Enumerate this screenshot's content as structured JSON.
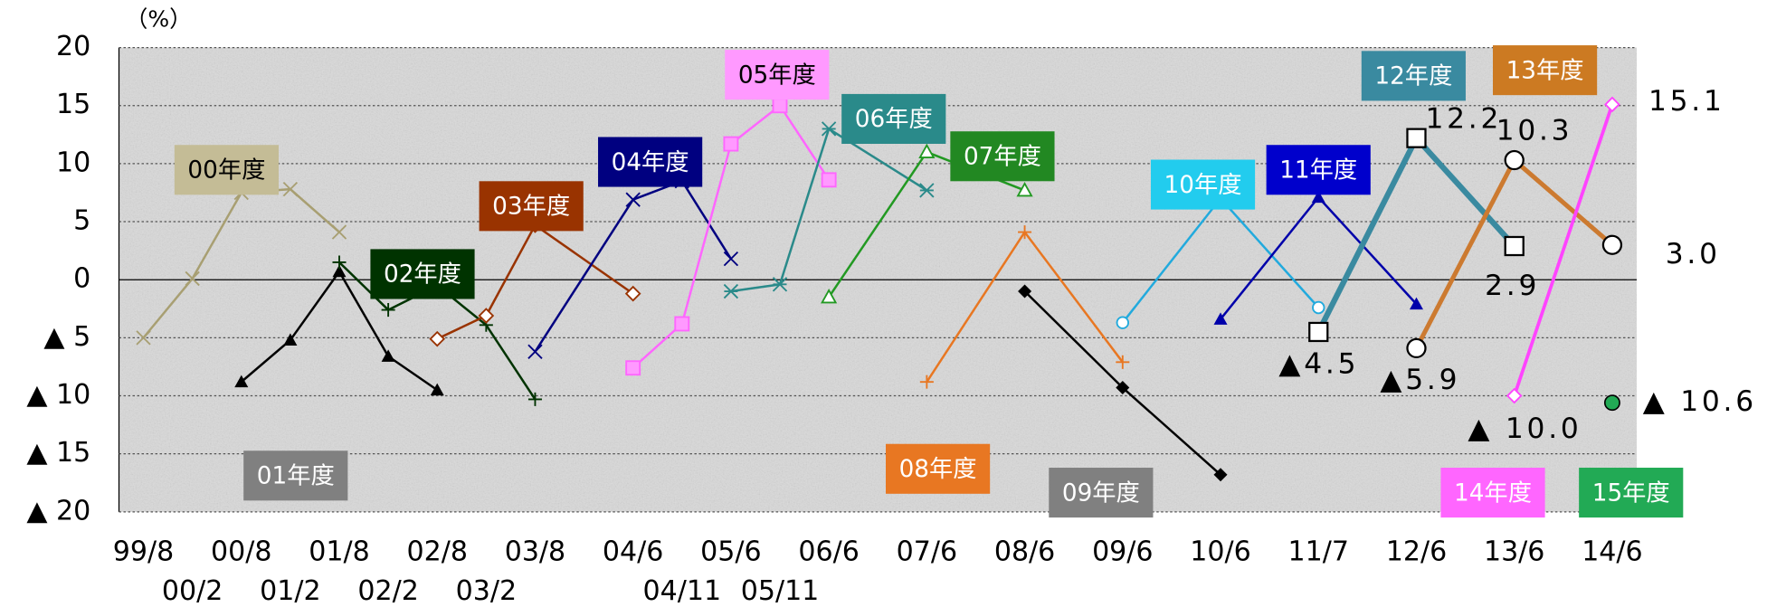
{
  "chart_data": {
    "type": "line",
    "y_label": "（%）",
    "categories": [
      "99/8",
      "00/2",
      "00/8",
      "01/2",
      "01/8",
      "02/2",
      "02/8",
      "03/2",
      "03/8",
      null,
      "04/6",
      "04/11",
      "05/6",
      "05/11",
      "06/6",
      null,
      "07/6",
      null,
      "08/6",
      null,
      "09/6",
      null,
      "10/6",
      null,
      "11/7",
      null,
      "12/6",
      null,
      "13/6",
      null,
      "14/6"
    ],
    "ylim": [
      -20,
      20
    ],
    "yticks": [
      20,
      15,
      10,
      5,
      0,
      {
        "value": -5,
        "label": "▲ 5"
      },
      {
        "value": -10,
        "label": "▲ 10"
      },
      {
        "value": -15,
        "label": "▲ 15"
      },
      {
        "value": -20,
        "label": "▲ 20"
      }
    ],
    "grid": true,
    "series": [
      {
        "name": "00年度",
        "color": "#a89f72",
        "label_color": "#c4bc96",
        "marker": "x",
        "values": [
          -5.0,
          0.1,
          7.5,
          7.8,
          4.1,
          null,
          null,
          null,
          null,
          null,
          null,
          null,
          null,
          null,
          null,
          null,
          null,
          null,
          null,
          null,
          null,
          null,
          null,
          null,
          null,
          null,
          null,
          null,
          null,
          null,
          null
        ]
      },
      {
        "name": "01年度",
        "color": "#000000",
        "label_color": "#808080",
        "marker": "tri-filled",
        "values": [
          null,
          null,
          -8.8,
          -5.2,
          0.7,
          -6.6,
          -9.5,
          null,
          null,
          null,
          null,
          null,
          null,
          null,
          null,
          null,
          null,
          null,
          null,
          null,
          null,
          null,
          null,
          null,
          null,
          null,
          null,
          null,
          null,
          null,
          null
        ]
      },
      {
        "name": "02年度",
        "color": "#003300",
        "label_color": "#003300",
        "marker": "plus",
        "values": [
          null,
          null,
          null,
          null,
          1.5,
          -2.6,
          -0.5,
          -3.9,
          -10.3,
          null,
          null,
          null,
          null,
          null,
          null,
          null,
          null,
          null,
          null,
          null,
          null,
          null,
          null,
          null,
          null,
          null,
          null,
          null,
          null,
          null,
          null
        ]
      },
      {
        "name": "03年度",
        "color": "#993300",
        "label_color": "#993300",
        "marker": "diamond-open",
        "values": [
          null,
          null,
          null,
          null,
          null,
          null,
          -5.1,
          -3.1,
          4.7,
          null,
          -1.2,
          null,
          null,
          null,
          null,
          null,
          null,
          null,
          null,
          null,
          null,
          null,
          null,
          null,
          null,
          null,
          null,
          null,
          null,
          null,
          null
        ]
      },
      {
        "name": "04年度",
        "color": "#000080",
        "label_color": "#000080",
        "marker": "x",
        "values": [
          null,
          null,
          null,
          null,
          null,
          null,
          null,
          null,
          -6.2,
          null,
          6.9,
          8.5,
          1.8,
          null,
          null,
          null,
          null,
          null,
          null,
          null,
          null,
          null,
          null,
          null,
          null,
          null,
          null,
          null,
          null,
          null,
          null
        ]
      },
      {
        "name": "05年度",
        "color": "#ff66ff",
        "label_color": "#ff99ff",
        "marker": "square-filled",
        "values": [
          null,
          null,
          null,
          null,
          null,
          null,
          null,
          null,
          null,
          null,
          -7.6,
          -3.8,
          11.7,
          15.0,
          8.6,
          null,
          null,
          null,
          null,
          null,
          null,
          null,
          null,
          null,
          null,
          null,
          null,
          null,
          null,
          null,
          null
        ]
      },
      {
        "name": "06年度",
        "color": "#2a8a8a",
        "label_color": "#2a8a8a",
        "marker": "asterisk",
        "values": [
          null,
          null,
          null,
          null,
          null,
          null,
          null,
          null,
          null,
          null,
          null,
          null,
          -1.0,
          -0.4,
          13.0,
          null,
          7.7,
          null,
          null,
          null,
          null,
          null,
          null,
          null,
          null,
          null,
          null,
          null,
          null,
          null,
          null
        ]
      },
      {
        "name": "07年度",
        "color": "#229922",
        "label_color": "#228822",
        "marker": "tri-open",
        "values": [
          null,
          null,
          null,
          null,
          null,
          null,
          null,
          null,
          null,
          null,
          null,
          null,
          null,
          null,
          -1.5,
          null,
          11.0,
          null,
          7.7,
          null,
          null,
          null,
          null,
          null,
          null,
          null,
          null,
          null,
          null,
          null,
          null
        ]
      },
      {
        "name": "08年度",
        "color": "#e87722",
        "label_color": "#e87722",
        "marker": "plus",
        "values": [
          null,
          null,
          null,
          null,
          null,
          null,
          null,
          null,
          null,
          null,
          null,
          null,
          null,
          null,
          null,
          null,
          -8.8,
          null,
          4.1,
          null,
          -7.1,
          null,
          null,
          null,
          null,
          null,
          null,
          null,
          null,
          null,
          null
        ]
      },
      {
        "name": "09年度",
        "color": "#000000",
        "label_color": "#808080",
        "marker": "diamond-filled",
        "values": [
          null,
          null,
          null,
          null,
          null,
          null,
          null,
          null,
          null,
          null,
          null,
          null,
          null,
          null,
          null,
          null,
          null,
          null,
          -1.0,
          null,
          -9.3,
          null,
          -16.8,
          null,
          null,
          null,
          null,
          null,
          null,
          null,
          null
        ]
      },
      {
        "name": "10年度",
        "color": "#22aadd",
        "label_color": "#22ccee",
        "marker": "circle-open",
        "values": [
          null,
          null,
          null,
          null,
          null,
          null,
          null,
          null,
          null,
          null,
          null,
          null,
          null,
          null,
          null,
          null,
          null,
          null,
          null,
          null,
          -3.7,
          null,
          7.0,
          null,
          -2.4,
          null,
          null,
          null,
          null,
          null,
          null
        ]
      },
      {
        "name": "11年度",
        "color": "#0000aa",
        "label_color": "#0000cc",
        "marker": "tri-filled",
        "values": [
          null,
          null,
          null,
          null,
          null,
          null,
          null,
          null,
          null,
          null,
          null,
          null,
          null,
          null,
          null,
          null,
          null,
          null,
          null,
          null,
          null,
          null,
          -3.4,
          null,
          7.1,
          null,
          -2.1,
          null,
          null,
          null,
          null
        ]
      },
      {
        "name": "12年度",
        "color": "#3a8aa0",
        "label_color": "#3a8aa0",
        "marker": "square-open",
        "values": [
          null,
          null,
          null,
          null,
          null,
          null,
          null,
          null,
          null,
          null,
          null,
          null,
          null,
          null,
          null,
          null,
          null,
          null,
          null,
          null,
          null,
          null,
          null,
          null,
          -4.5,
          null,
          12.2,
          null,
          2.9,
          null,
          null
        ],
        "value_labels": [
          null,
          null,
          null,
          null,
          null,
          null,
          null,
          null,
          null,
          null,
          null,
          null,
          null,
          null,
          null,
          null,
          null,
          null,
          null,
          null,
          null,
          null,
          null,
          null,
          "▲4.5",
          null,
          "12.2",
          null,
          "2.9",
          null,
          null
        ]
      },
      {
        "name": "13年度",
        "color": "#cc7a30",
        "label_color": "#cc7a22",
        "marker": "circle-open-black",
        "values": [
          null,
          null,
          null,
          null,
          null,
          null,
          null,
          null,
          null,
          null,
          null,
          null,
          null,
          null,
          null,
          null,
          null,
          null,
          null,
          null,
          null,
          null,
          null,
          null,
          null,
          null,
          -5.9,
          null,
          10.3,
          null,
          3.0
        ],
        "value_labels": [
          null,
          null,
          null,
          null,
          null,
          null,
          null,
          null,
          null,
          null,
          null,
          null,
          null,
          null,
          null,
          null,
          null,
          null,
          null,
          null,
          null,
          null,
          null,
          null,
          null,
          null,
          "▲5.9",
          null,
          "10.3",
          null,
          "3.0"
        ]
      },
      {
        "name": "14年度",
        "color": "#ff44ff",
        "label_color": "#ff66ff",
        "marker": "diamond-open",
        "values": [
          null,
          null,
          null,
          null,
          null,
          null,
          null,
          null,
          null,
          null,
          null,
          null,
          null,
          null,
          null,
          null,
          null,
          null,
          null,
          null,
          null,
          null,
          null,
          null,
          null,
          null,
          null,
          null,
          -10.0,
          null,
          15.1
        ],
        "value_labels": [
          null,
          null,
          null,
          null,
          null,
          null,
          null,
          null,
          null,
          null,
          null,
          null,
          null,
          null,
          null,
          null,
          null,
          null,
          null,
          null,
          null,
          null,
          null,
          null,
          null,
          null,
          null,
          null,
          "▲ 10.0",
          null,
          "15.1"
        ]
      },
      {
        "name": "15年度",
        "color": "#22aa55",
        "label_color": "#22aa55",
        "marker": "circle-filled",
        "values": [
          null,
          null,
          null,
          null,
          null,
          null,
          null,
          null,
          null,
          null,
          null,
          null,
          null,
          null,
          null,
          null,
          null,
          null,
          null,
          null,
          null,
          null,
          null,
          null,
          null,
          null,
          null,
          null,
          null,
          null,
          -10.6
        ],
        "value_labels": [
          null,
          null,
          null,
          null,
          null,
          null,
          null,
          null,
          null,
          null,
          null,
          null,
          null,
          null,
          null,
          null,
          null,
          null,
          null,
          null,
          null,
          null,
          null,
          null,
          null,
          null,
          null,
          null,
          null,
          null,
          "▲ 10.6"
        ]
      }
    ]
  }
}
